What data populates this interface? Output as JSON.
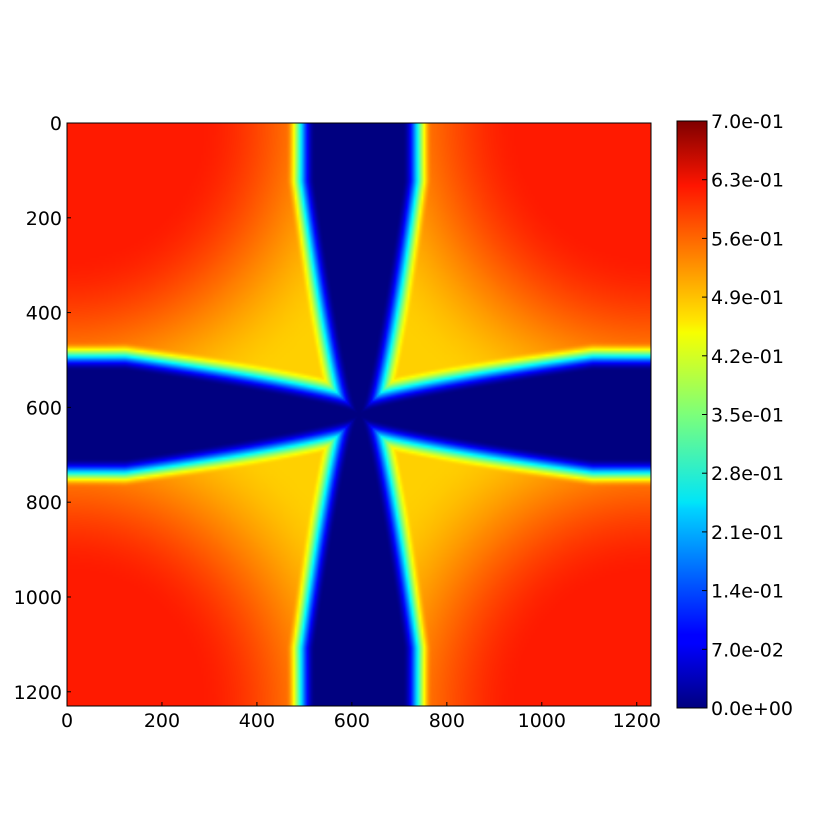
{
  "chart_data": {
    "type": "heatmap",
    "title": "",
    "xlabel": "",
    "ylabel": "",
    "xlim": [
      0,
      1230
    ],
    "ylim": [
      1230,
      0
    ],
    "x_ticks": [
      "0",
      "200",
      "400",
      "600",
      "800",
      "1000",
      "1200"
    ],
    "y_ticks": [
      "0",
      "200",
      "400",
      "600",
      "800",
      "1000",
      "1200"
    ],
    "colormap": "jet",
    "colorbar": {
      "min": 0.0,
      "max": 0.7,
      "ticks": [
        "0.0e+00",
        "7.0e-02",
        "1.4e-01",
        "2.1e-01",
        "2.8e-01",
        "3.5e-01",
        "4.2e-01",
        "4.9e-01",
        "5.6e-01",
        "6.3e-01",
        "7.0e-01"
      ]
    },
    "field_description_values": {
      "cross_arms_value": 0.0,
      "between_arms_value": 0.5,
      "corner_max_value": 0.6
    }
  }
}
